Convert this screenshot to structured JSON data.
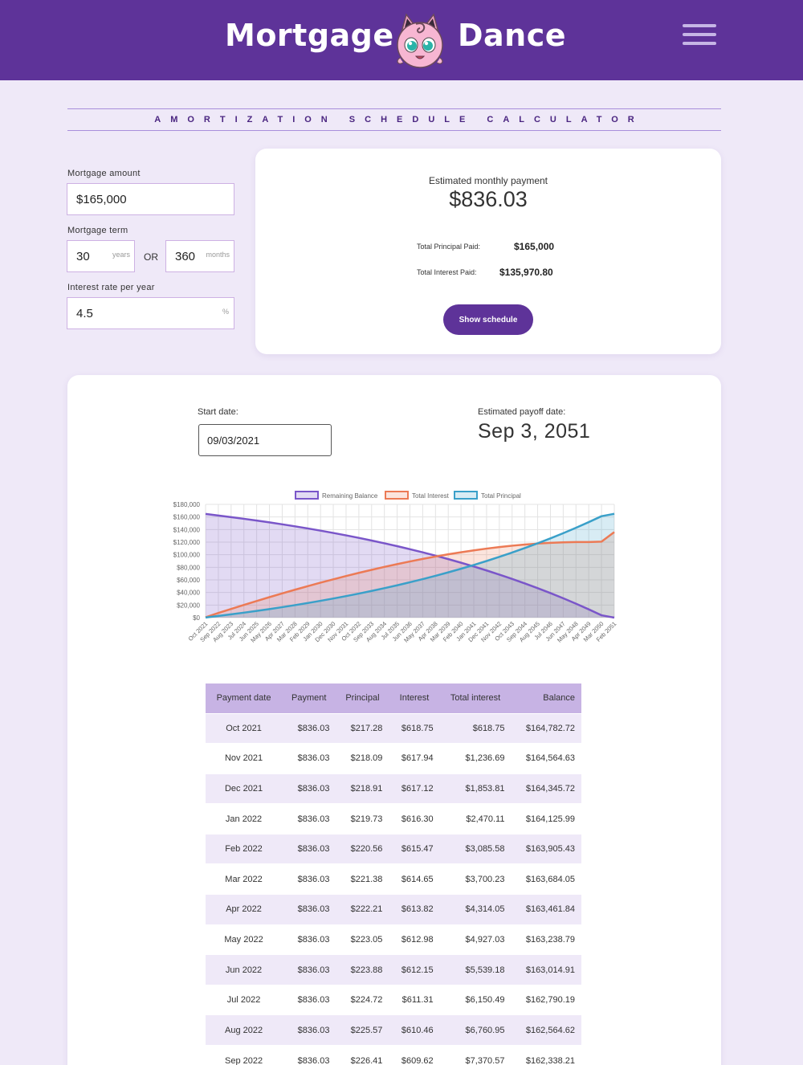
{
  "header": {
    "brand_left": "Mortgage",
    "brand_right": "Dance",
    "mascot_icon": "jigglypuff-mascot-icon",
    "menu_icon": "hamburger-menu-icon",
    "background": "#5e3399"
  },
  "subtitle": "AMORTIZATION SCHEDULE CALCULATOR",
  "inputs": {
    "amount_label": "Mortgage amount",
    "amount_value": "$165,000",
    "term_label": "Mortgage term",
    "term_years": "30",
    "years_unit": "years",
    "or_label": "OR",
    "term_months": "360",
    "months_unit": "months",
    "rate_label": "Interest rate per year",
    "rate_value": "4.5",
    "rate_unit": "%"
  },
  "summary": {
    "payment_label": "Estimated monthly payment",
    "payment_value": "$836.03",
    "principal_label": "Total Principal Paid:",
    "principal_value": "$165,000",
    "interest_label": "Total Interest Paid:",
    "interest_value": "$135,970.80",
    "button_label": "Show schedule"
  },
  "dates": {
    "start_label": "Start date:",
    "start_value": "09/03/2021",
    "payoff_label": "Estimated payoff date:",
    "payoff_value": "Sep 3, 2051"
  },
  "chart_data": {
    "type": "line",
    "legend_position": "top",
    "grid": true,
    "ylim": [
      0,
      180000
    ],
    "yticks": [
      "$180,000",
      "$160,000",
      "$140,000",
      "$120,000",
      "$100,000",
      "$80,000",
      "$60,000",
      "$40,000",
      "$20,000",
      "$0"
    ],
    "x": [
      "Oct 2021",
      "Sep 2022",
      "Aug 2023",
      "Jul 2024",
      "Jun 2025",
      "May 2026",
      "Apr 2027",
      "Mar 2028",
      "Feb 2029",
      "Jan 2030",
      "Dec 2030",
      "Nov 2031",
      "Oct 2032",
      "Sep 2033",
      "Aug 2034",
      "Jul 2035",
      "Jun 2036",
      "May 2037",
      "Apr 2038",
      "Mar 2039",
      "Feb 2040",
      "Jan 2041",
      "Dec 2041",
      "Nov 2042",
      "Oct 2043",
      "Sep 2044",
      "Aug 2045",
      "Jul 2046",
      "Jun 2047",
      "May 2048",
      "Apr 2049",
      "Mar 2050",
      "Feb 2051"
    ],
    "series": [
      {
        "name": "Remaining Balance",
        "color": "#7a56c9",
        "values": [
          164783,
          162338,
          159779,
          157104,
          154306,
          151380,
          148318,
          145117,
          141767,
          138264,
          134599,
          130766,
          126757,
          122564,
          118177,
          113590,
          108792,
          103773,
          98523,
          93033,
          87290,
          81284,
          75002,
          68431,
          61558,
          54370,
          46852,
          38988,
          30763,
          22160,
          13162,
          3750,
          0
        ]
      },
      {
        "name": "Total Interest",
        "color": "#ec7a55",
        "values": [
          619,
          7371,
          13845,
          20202,
          26437,
          32543,
          38513,
          44344,
          50027,
          55556,
          60924,
          66123,
          71146,
          75985,
          80630,
          85075,
          89309,
          93322,
          97104,
          100646,
          103935,
          106961,
          109711,
          112172,
          114331,
          116175,
          117689,
          118856,
          119663,
          120092,
          120126,
          120766,
          135971
        ]
      },
      {
        "name": "Total Principal",
        "color": "#3aa0c9",
        "values": [
          217,
          2662,
          5221,
          7896,
          10694,
          13620,
          16682,
          19883,
          23233,
          26736,
          30401,
          34234,
          38243,
          42436,
          46823,
          51410,
          56208,
          61227,
          66477,
          71967,
          77710,
          83716,
          89998,
          96569,
          103442,
          110630,
          118148,
          126012,
          134237,
          142840,
          151838,
          161250,
          165000
        ]
      }
    ]
  },
  "schedule": {
    "headers": [
      "Payment date",
      "Payment",
      "Principal",
      "Interest",
      "Total interest",
      "Balance"
    ],
    "rows": [
      [
        "Oct 2021",
        "$836.03",
        "$217.28",
        "$618.75",
        "$618.75",
        "$164,782.72"
      ],
      [
        "Nov 2021",
        "$836.03",
        "$218.09",
        "$617.94",
        "$1,236.69",
        "$164,564.63"
      ],
      [
        "Dec 2021",
        "$836.03",
        "$218.91",
        "$617.12",
        "$1,853.81",
        "$164,345.72"
      ],
      [
        "Jan 2022",
        "$836.03",
        "$219.73",
        "$616.30",
        "$2,470.11",
        "$164,125.99"
      ],
      [
        "Feb 2022",
        "$836.03",
        "$220.56",
        "$615.47",
        "$3,085.58",
        "$163,905.43"
      ],
      [
        "Mar 2022",
        "$836.03",
        "$221.38",
        "$614.65",
        "$3,700.23",
        "$163,684.05"
      ],
      [
        "Apr 2022",
        "$836.03",
        "$222.21",
        "$613.82",
        "$4,314.05",
        "$163,461.84"
      ],
      [
        "May 2022",
        "$836.03",
        "$223.05",
        "$612.98",
        "$4,927.03",
        "$163,238.79"
      ],
      [
        "Jun 2022",
        "$836.03",
        "$223.88",
        "$612.15",
        "$5,539.18",
        "$163,014.91"
      ],
      [
        "Jul 2022",
        "$836.03",
        "$224.72",
        "$611.31",
        "$6,150.49",
        "$162,790.19"
      ],
      [
        "Aug 2022",
        "$836.03",
        "$225.57",
        "$610.46",
        "$6,760.95",
        "$162,564.62"
      ],
      [
        "Sep 2022",
        "$836.03",
        "$226.41",
        "$609.62",
        "$7,370.57",
        "$162,338.21"
      ]
    ]
  }
}
